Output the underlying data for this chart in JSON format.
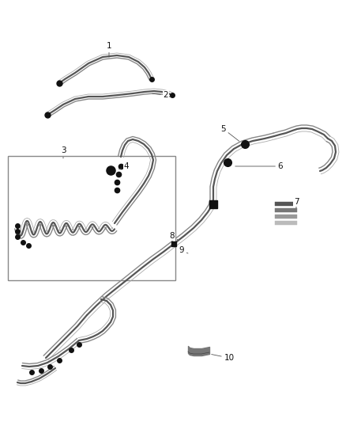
{
  "background": "#ffffff",
  "lc1": "#555555",
  "lc2": "#888888",
  "lc3": "#aaaaaa",
  "label_color": "#111111",
  "box_edge": "#888888",
  "conn_color": "#111111",
  "figsize": [
    4.38,
    5.33
  ],
  "dpi": 100,
  "label_fs": 7.5,
  "lw_main": 1.6,
  "lw_mid": 1.0,
  "lw_thin": 0.6
}
